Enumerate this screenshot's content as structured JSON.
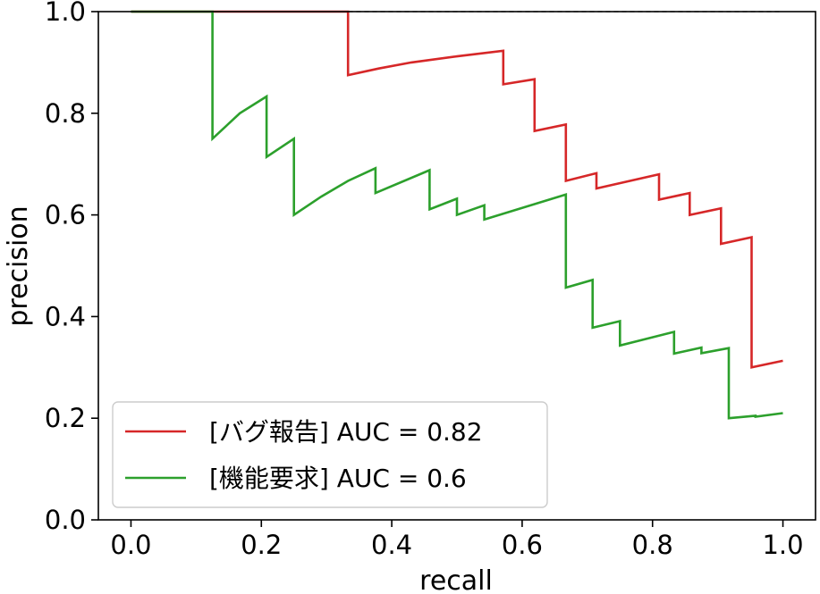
{
  "chart_data": {
    "type": "line",
    "xlabel": "recall",
    "ylabel": "precision",
    "xlim": [
      -0.05,
      1.05
    ],
    "ylim": [
      0.0,
      1.0
    ],
    "xticks": [
      0.0,
      0.2,
      0.4,
      0.6,
      0.8,
      1.0
    ],
    "yticks": [
      0.0,
      0.2,
      0.4,
      0.6,
      0.8,
      1.0
    ],
    "xtick_labels": [
      "0.0",
      "0.2",
      "0.4",
      "0.6",
      "0.8",
      "1.0"
    ],
    "ytick_labels": [
      "0.0",
      "0.2",
      "0.4",
      "0.6",
      "0.8",
      "1.0"
    ],
    "grid": false,
    "legend_position": "lower-left",
    "baseline": {
      "style": "dashed",
      "color": "#000000",
      "points": [
        [
          0.0,
          1.0
        ],
        [
          1.0,
          1.0
        ]
      ]
    },
    "series": [
      {
        "name": "[バグ報告] AUC = 0.82",
        "color": "#d62728",
        "points": [
          [
            0.0,
            1.0
          ],
          [
            0.333,
            1.0
          ],
          [
            0.333,
            0.875
          ],
          [
            0.38,
            0.888
          ],
          [
            0.43,
            0.9
          ],
          [
            0.5,
            0.912
          ],
          [
            0.571,
            0.923
          ],
          [
            0.571,
            0.857
          ],
          [
            0.619,
            0.867
          ],
          [
            0.619,
            0.765
          ],
          [
            0.667,
            0.778
          ],
          [
            0.667,
            0.667
          ],
          [
            0.714,
            0.682
          ],
          [
            0.714,
            0.652
          ],
          [
            0.81,
            0.68
          ],
          [
            0.81,
            0.63
          ],
          [
            0.857,
            0.643
          ],
          [
            0.857,
            0.6
          ],
          [
            0.905,
            0.613
          ],
          [
            0.905,
            0.543
          ],
          [
            0.952,
            0.556
          ],
          [
            0.952,
            0.3
          ],
          [
            1.0,
            0.313
          ]
        ]
      },
      {
        "name": "[機能要求] AUC = 0.6",
        "color": "#2ca02c",
        "points": [
          [
            0.0,
            1.0
          ],
          [
            0.125,
            1.0
          ],
          [
            0.125,
            0.75
          ],
          [
            0.167,
            0.8
          ],
          [
            0.208,
            0.833
          ],
          [
            0.208,
            0.714
          ],
          [
            0.25,
            0.75
          ],
          [
            0.25,
            0.6
          ],
          [
            0.292,
            0.636
          ],
          [
            0.333,
            0.667
          ],
          [
            0.375,
            0.692
          ],
          [
            0.375,
            0.643
          ],
          [
            0.458,
            0.688
          ],
          [
            0.458,
            0.611
          ],
          [
            0.5,
            0.632
          ],
          [
            0.5,
            0.6
          ],
          [
            0.542,
            0.619
          ],
          [
            0.542,
            0.591
          ],
          [
            0.667,
            0.64
          ],
          [
            0.667,
            0.457
          ],
          [
            0.708,
            0.472
          ],
          [
            0.708,
            0.378
          ],
          [
            0.75,
            0.391
          ],
          [
            0.75,
            0.343
          ],
          [
            0.833,
            0.37
          ],
          [
            0.833,
            0.327
          ],
          [
            0.875,
            0.339
          ],
          [
            0.875,
            0.328
          ],
          [
            0.917,
            0.338
          ],
          [
            0.917,
            0.2
          ],
          [
            0.958,
            0.205
          ],
          [
            0.958,
            0.203
          ],
          [
            1.0,
            0.21
          ]
        ]
      }
    ]
  }
}
